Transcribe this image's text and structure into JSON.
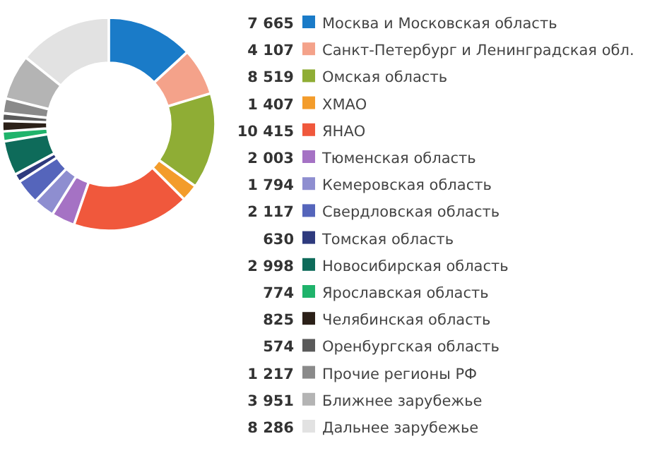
{
  "chart_data": {
    "type": "donut",
    "categories": [
      "Москва и Московская область",
      "Санкт-Петербург и Ленинградская обл.",
      "Омская область",
      "ХМАО",
      "ЯНАО",
      "Тюменская область",
      "Кемеровская область",
      "Свердловская область",
      "Томская область",
      "Новосибирская область",
      "Ярославская область",
      "Челябинская область",
      "Оренбургская область",
      "Прочие регионы РФ",
      "Ближнее зарубежье",
      "Дальнее зарубежье"
    ],
    "values": [
      7665,
      4107,
      8519,
      1407,
      10415,
      2003,
      1794,
      2117,
      630,
      2998,
      774,
      825,
      574,
      1217,
      3951,
      8286
    ],
    "value_labels": [
      "7 665",
      "4 107",
      "8 519",
      "1 407",
      "10 415",
      "2 003",
      "1 794",
      "2 117",
      "630",
      "2 998",
      "774",
      "825",
      "574",
      "1 217",
      "3 951",
      "8 286"
    ],
    "colors": [
      "#1a7bc8",
      "#f4a28a",
      "#8fad35",
      "#f39c2b",
      "#f0583c",
      "#a572c4",
      "#8e8ed0",
      "#5565bb",
      "#2e3a7e",
      "#0e6b5a",
      "#1fb36b",
      "#2b2018",
      "#5a5a5a",
      "#8a8a8a",
      "#b4b4b4",
      "#e2e2e2"
    ],
    "legend": "right"
  }
}
